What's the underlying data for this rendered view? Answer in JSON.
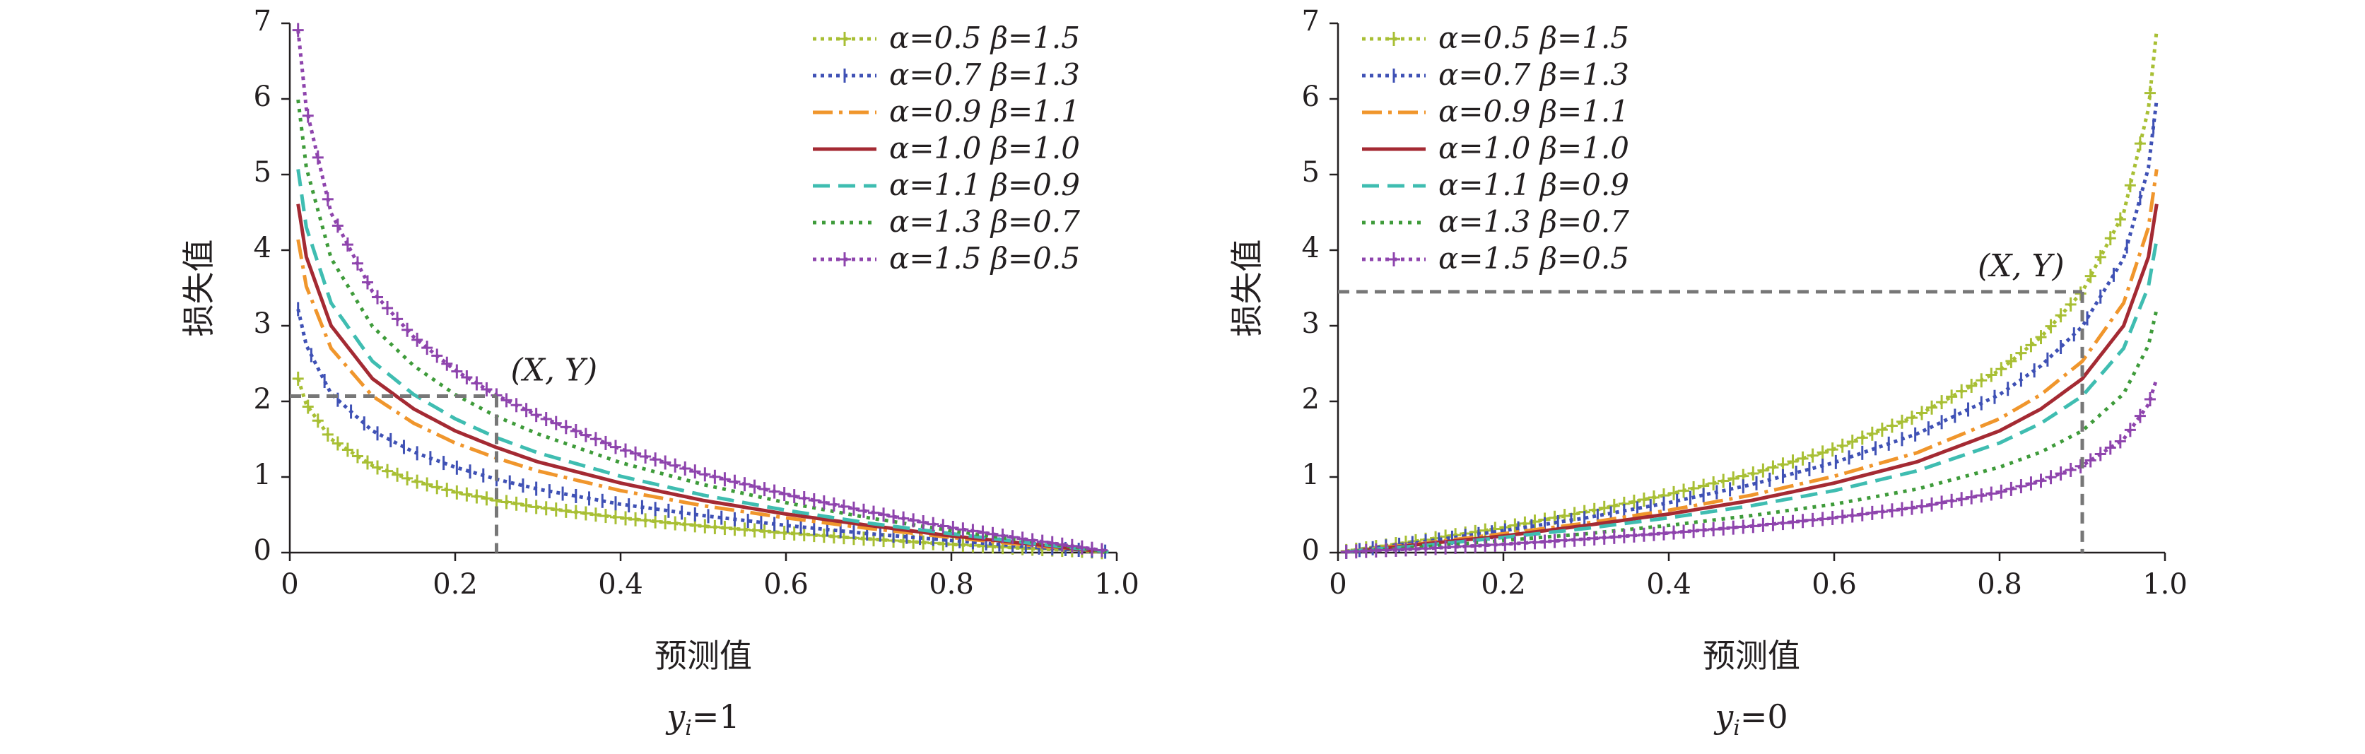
{
  "chart_data": [
    {
      "type": "line",
      "case": "y_i=1",
      "caption": {
        "main": "y",
        "sub": "i",
        "rest": "=1"
      },
      "xlabel": "预测值",
      "ylabel": "损失值",
      "xlim": [
        0,
        1.0
      ],
      "ylim": [
        0,
        7
      ],
      "xticks": [
        "0",
        "0.2",
        "0.4",
        "0.6",
        "0.8",
        "1.0"
      ],
      "yticks": [
        "0",
        "1",
        "2",
        "3",
        "4",
        "5",
        "6",
        "7"
      ],
      "grid": false,
      "legend_position": "top-right",
      "annotation": {
        "label": "(X, Y)",
        "x": 0.25,
        "y": 2.07
      },
      "x": [
        0.01,
        0.02,
        0.05,
        0.1,
        0.15,
        0.2,
        0.25,
        0.3,
        0.4,
        0.5,
        0.6,
        0.7,
        0.8,
        0.9,
        0.95,
        0.99
      ],
      "series": [
        {
          "name": "α=0.5 β=1.5",
          "values": [
            2.3,
            1.96,
            1.5,
            1.15,
            0.95,
            0.8,
            0.69,
            0.6,
            0.46,
            0.35,
            0.26,
            0.18,
            0.11,
            0.05,
            0.03,
            0.0
          ]
        },
        {
          "name": "α=0.7 β=1.3",
          "values": [
            3.22,
            2.74,
            2.1,
            1.61,
            1.33,
            1.13,
            0.97,
            0.84,
            0.64,
            0.49,
            0.36,
            0.25,
            0.16,
            0.07,
            0.04,
            0.01
          ]
        },
        {
          "name": "α=0.9 β=1.1",
          "values": [
            4.14,
            3.52,
            2.7,
            2.07,
            1.71,
            1.45,
            1.25,
            1.08,
            0.82,
            0.62,
            0.46,
            0.32,
            0.2,
            0.09,
            0.05,
            0.01
          ]
        },
        {
          "name": "α=1.0 β=1.0",
          "values": [
            4.61,
            3.91,
            3.0,
            2.3,
            1.9,
            1.61,
            1.39,
            1.2,
            0.92,
            0.69,
            0.51,
            0.36,
            0.22,
            0.11,
            0.05,
            0.01
          ]
        },
        {
          "name": "α=1.1 β=0.9",
          "values": [
            5.07,
            4.3,
            3.3,
            2.53,
            2.09,
            1.77,
            1.52,
            1.32,
            1.01,
            0.76,
            0.56,
            0.39,
            0.25,
            0.12,
            0.06,
            0.01
          ]
        },
        {
          "name": "α=1.3 β=0.7",
          "values": [
            5.99,
            5.09,
            3.89,
            2.99,
            2.47,
            2.09,
            1.8,
            1.57,
            1.19,
            0.9,
            0.66,
            0.46,
            0.29,
            0.14,
            0.07,
            0.01
          ]
        },
        {
          "name": "α=1.5 β=0.5",
          "values": [
            6.91,
            5.87,
            4.49,
            3.45,
            2.85,
            2.41,
            2.08,
            1.81,
            1.37,
            1.04,
            0.77,
            0.54,
            0.33,
            0.16,
            0.08,
            0.02
          ]
        }
      ]
    },
    {
      "type": "line",
      "case": "y_i=0",
      "caption": {
        "main": "y",
        "sub": "i",
        "rest": "=0"
      },
      "xlabel": "预测值",
      "ylabel": "损失值",
      "xlim": [
        0,
        1.0
      ],
      "ylim": [
        0,
        7
      ],
      "xticks": [
        "0",
        "0.2",
        "0.4",
        "0.6",
        "0.8",
        "1.0"
      ],
      "yticks": [
        "0",
        "1",
        "2",
        "3",
        "4",
        "5",
        "6",
        "7"
      ],
      "grid": false,
      "legend_position": "top-left",
      "annotation": {
        "label": "(X, Y)",
        "x": 0.9,
        "y": 3.45
      },
      "x": [
        0.01,
        0.05,
        0.1,
        0.2,
        0.3,
        0.4,
        0.5,
        0.6,
        0.7,
        0.8,
        0.85,
        0.9,
        0.95,
        0.98,
        0.99
      ],
      "series": [
        {
          "name": "α=0.5 β=1.5",
          "values": [
            0.02,
            0.08,
            0.16,
            0.33,
            0.54,
            0.77,
            1.04,
            1.37,
            1.81,
            2.41,
            2.85,
            3.45,
            4.49,
            5.87,
            6.91
          ]
        },
        {
          "name": "α=0.7 β=1.3",
          "values": [
            0.01,
            0.07,
            0.14,
            0.29,
            0.46,
            0.66,
            0.9,
            1.19,
            1.57,
            2.09,
            2.47,
            2.99,
            3.89,
            5.09,
            5.99
          ]
        },
        {
          "name": "α=0.9 β=1.1",
          "values": [
            0.01,
            0.06,
            0.12,
            0.25,
            0.39,
            0.56,
            0.76,
            1.01,
            1.32,
            1.77,
            2.09,
            2.53,
            3.3,
            4.3,
            5.07
          ]
        },
        {
          "name": "α=1.0 β=1.0",
          "values": [
            0.01,
            0.05,
            0.11,
            0.22,
            0.36,
            0.51,
            0.69,
            0.92,
            1.2,
            1.61,
            1.9,
            2.3,
            3.0,
            3.91,
            4.61
          ]
        },
        {
          "name": "α=1.1 β=0.9",
          "values": [
            0.01,
            0.05,
            0.09,
            0.2,
            0.32,
            0.46,
            0.62,
            0.82,
            1.08,
            1.45,
            1.71,
            2.07,
            2.7,
            3.52,
            4.14
          ]
        },
        {
          "name": "α=1.3 β=0.7",
          "values": [
            0.01,
            0.04,
            0.07,
            0.16,
            0.25,
            0.36,
            0.49,
            0.64,
            0.84,
            1.13,
            1.33,
            1.61,
            2.1,
            2.74,
            3.22
          ]
        },
        {
          "name": "α=1.5 β=0.5",
          "values": [
            0.01,
            0.03,
            0.05,
            0.11,
            0.18,
            0.26,
            0.35,
            0.46,
            0.6,
            0.8,
            0.95,
            1.15,
            1.5,
            1.96,
            2.3
          ]
        }
      ]
    }
  ],
  "styles": [
    {
      "color": "#a8bf34",
      "dash": "5 6",
      "marker": "plus"
    },
    {
      "color": "#3f51b5",
      "dash": "5 6",
      "marker": "tick"
    },
    {
      "color": "#f0962c",
      "dash": "28 9 5 9",
      "marker": "none"
    },
    {
      "color": "#a42a33",
      "dash": "",
      "marker": "none"
    },
    {
      "color": "#3fbdb1",
      "dash": "24 12",
      "marker": "none"
    },
    {
      "color": "#3e9b3a",
      "dash": "5 8",
      "marker": "none"
    },
    {
      "color": "#8e44ad",
      "dash": "5 6",
      "marker": "plus"
    }
  ],
  "axis_color": "#231f20",
  "annotation_color": "#777777"
}
